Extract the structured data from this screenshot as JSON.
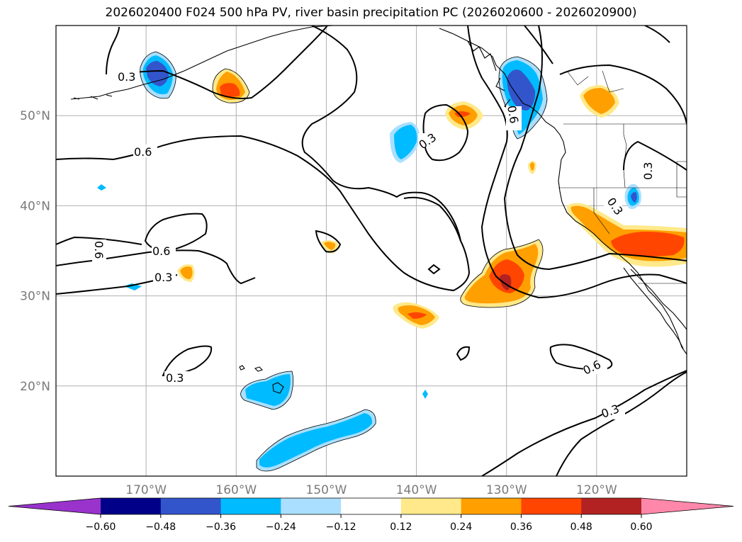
{
  "title": "2026020400 F024 500 hPa PV, river basin precipitation PC (2026020600 - 2026020900)",
  "map": {
    "projection": "PlateCarree",
    "lon_range": [
      -180,
      -110
    ],
    "lat_range": [
      10,
      60
    ],
    "lat_ticks": [
      {
        "value": 50,
        "label": "50°N"
      },
      {
        "value": 40,
        "label": "40°N"
      },
      {
        "value": 30,
        "label": "30°N"
      },
      {
        "value": 20,
        "label": "20°N"
      }
    ],
    "lon_ticks": [
      {
        "value": -170,
        "label": "170°W"
      },
      {
        "value": -160,
        "label": "160°W"
      },
      {
        "value": -150,
        "label": "150°W"
      },
      {
        "value": -140,
        "label": "140°W"
      },
      {
        "value": -130,
        "label": "130°W"
      },
      {
        "value": -120,
        "label": "120°W"
      }
    ],
    "gridlines": true,
    "contour_labels": [
      "0.3",
      "0.3",
      "0.3",
      "0.3",
      "0.3",
      "0.3",
      "0.3",
      "0.6",
      "0.6",
      "0.6",
      "0.6",
      "0.6"
    ]
  },
  "colorbar": {
    "colors": [
      "#9933cc",
      "#000088",
      "#3355cc",
      "#00bbff",
      "#aadfff",
      "#ffffff",
      "#ffe98a",
      "#ff9f00",
      "#ff4500",
      "#b22222",
      "#ff88aa"
    ],
    "ticks": [
      "−0.60",
      "−0.48",
      "−0.36",
      "−0.24",
      "−0.12",
      "0.12",
      "0.24",
      "0.36",
      "0.48",
      "0.60"
    ],
    "extend": "both"
  }
}
